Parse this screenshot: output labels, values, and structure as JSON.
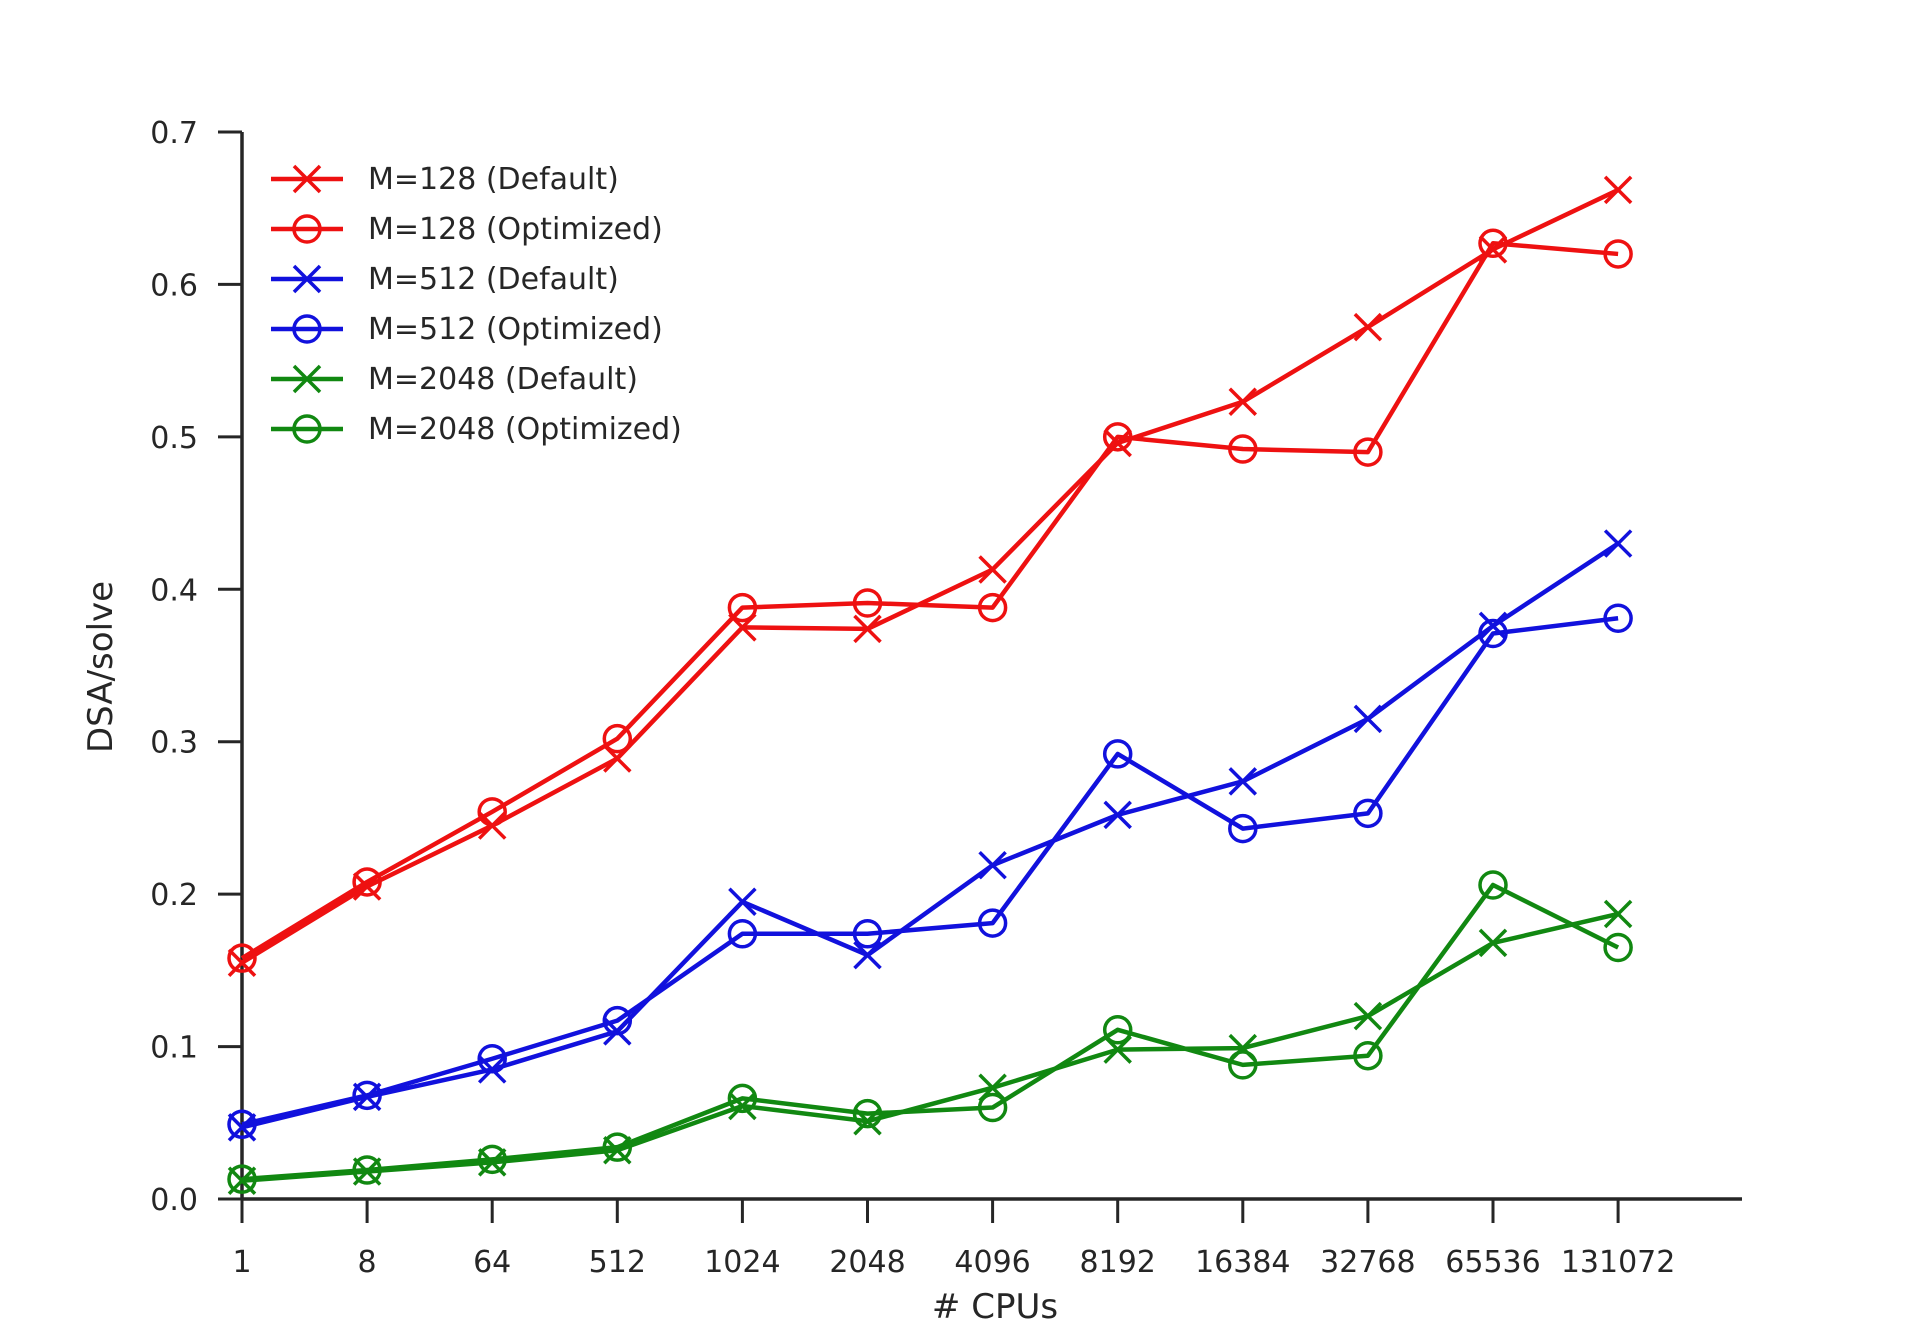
{
  "chart_data": {
    "type": "line",
    "title": "",
    "xlabel": "# CPUs",
    "ylabel": "DSA/solve",
    "categories": [
      "1",
      "8",
      "64",
      "512",
      "1024",
      "2048",
      "4096",
      "8192",
      "16384",
      "32768",
      "65536",
      "131072"
    ],
    "ylim": [
      0,
      0.7
    ],
    "yticks": [
      "0.0",
      "0.1",
      "0.2",
      "0.3",
      "0.4",
      "0.5",
      "0.6",
      "0.7"
    ],
    "grid": false,
    "legend_position": "top-left",
    "series": [
      {
        "name": "M=128 (Default)",
        "color": "#ee1111",
        "marker": "x",
        "values": [
          0.155,
          0.205,
          0.245,
          0.289,
          0.375,
          0.374,
          0.413,
          0.496,
          0.523,
          0.572,
          0.623,
          0.662
        ]
      },
      {
        "name": "M=128 (Optimized)",
        "color": "#ee1111",
        "marker": "o",
        "values": [
          0.158,
          0.208,
          0.254,
          0.302,
          0.388,
          0.391,
          0.388,
          0.5,
          0.492,
          0.49,
          0.627,
          0.62
        ]
      },
      {
        "name": "M=512 (Default)",
        "color": "#1111dd",
        "marker": "x",
        "values": [
          0.047,
          0.067,
          0.085,
          0.11,
          0.195,
          0.16,
          0.219,
          0.252,
          0.274,
          0.315,
          0.376,
          0.43
        ]
      },
      {
        "name": "M=512 (Optimized)",
        "color": "#1111dd",
        "marker": "o",
        "values": [
          0.049,
          0.068,
          0.092,
          0.117,
          0.174,
          0.174,
          0.181,
          0.292,
          0.243,
          0.253,
          0.371,
          0.381
        ]
      },
      {
        "name": "M=2048 (Default)",
        "color": "#118811",
        "marker": "x",
        "values": [
          0.012,
          0.018,
          0.024,
          0.032,
          0.061,
          0.051,
          0.073,
          0.098,
          0.099,
          0.12,
          0.168,
          0.187
        ]
      },
      {
        "name": "M=2048 (Optimized)",
        "color": "#118811",
        "marker": "o",
        "values": [
          0.013,
          0.019,
          0.026,
          0.034,
          0.066,
          0.056,
          0.06,
          0.111,
          0.088,
          0.094,
          0.206,
          0.165
        ]
      }
    ]
  }
}
